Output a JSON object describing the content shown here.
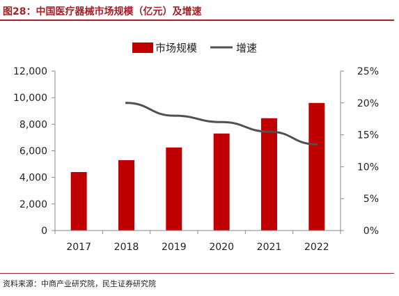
{
  "title": "图28：中国医疗器械市场规模（亿元）及增速",
  "source": "资料来源：中商产业研究院，民生证券研究院",
  "colors": {
    "bar": "#c00000",
    "line": "#505050",
    "accent": "#a61f24"
  },
  "chart_data": {
    "type": "bar",
    "categories": [
      "2017",
      "2018",
      "2019",
      "2020",
      "2021",
      "2022"
    ],
    "series": [
      {
        "name": "市场规模",
        "type": "bar",
        "axis": "left",
        "values": [
          4400,
          5300,
          6250,
          7300,
          8450,
          9600
        ]
      },
      {
        "name": "增速",
        "type": "line",
        "axis": "right",
        "values": [
          null,
          20.0,
          18.0,
          17.0,
          15.5,
          13.5
        ]
      }
    ],
    "y_left": {
      "min": 0,
      "max": 12000,
      "ticks": [
        "0",
        "2,000",
        "4,000",
        "6,000",
        "8,000",
        "10,000",
        "12,000"
      ]
    },
    "y_right": {
      "min": 0,
      "max": 25,
      "ticks": [
        "0%",
        "5%",
        "10%",
        "15%",
        "20%",
        "25%"
      ]
    },
    "legend": {
      "position": "top",
      "items": [
        "市场规模",
        "增速"
      ]
    },
    "grid": false
  }
}
